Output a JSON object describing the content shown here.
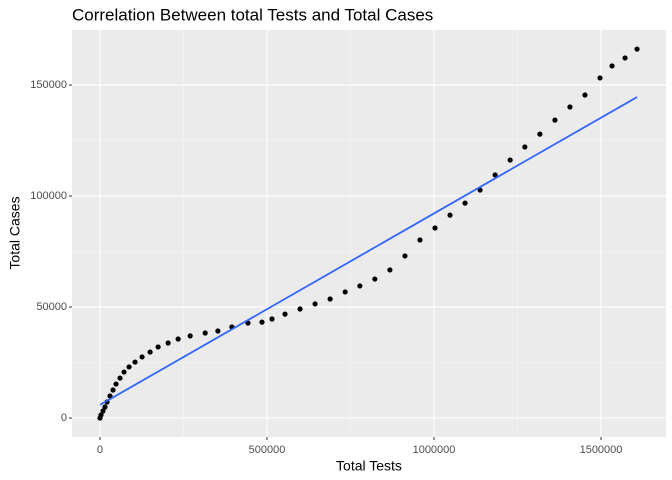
{
  "chart_data": {
    "type": "scatter",
    "title": "Correlation Between total Tests and Total Cases",
    "x_label": "Total Tests",
    "y_label": "Total Cases",
    "x": [
      0,
      3000,
      9000,
      15000,
      21000,
      30000,
      39000,
      48000,
      60000,
      72000,
      87000,
      105000,
      126000,
      150000,
      174000,
      204000,
      234000,
      270000,
      315000,
      353000,
      395000,
      443000,
      485000,
      515000,
      554000,
      599000,
      644000,
      689000,
      734000,
      778000,
      823000,
      868000,
      913000,
      958000,
      1003000,
      1048000,
      1093000,
      1138000,
      1183000,
      1228000,
      1272000,
      1317000,
      1362000,
      1407000,
      1452000,
      1497000,
      1533000,
      1572000,
      1608000
    ],
    "values": [
      0,
      1350,
      3150,
      4950,
      7200,
      9900,
      12600,
      15300,
      18000,
      20700,
      23000,
      25200,
      27500,
      29700,
      32000,
      33800,
      35600,
      37000,
      38300,
      39200,
      41000,
      42800,
      43200,
      44600,
      46800,
      49100,
      51400,
      53600,
      56800,
      59500,
      62600,
      66700,
      73000,
      80200,
      85600,
      91400,
      96800,
      102700,
      109500,
      116200,
      122100,
      127900,
      134200,
      140100,
      145500,
      153200,
      158600,
      162200,
      166200
    ],
    "color": "#000000",
    "trend_line": {
      "x": [
        0,
        1608000
      ],
      "values": [
        5900,
        144600
      ],
      "color": "#3366ff"
    },
    "xlim": [
      -83800,
      1694600
    ],
    "ylim": [
      -8560,
      174800
    ],
    "xticks": [
      0,
      500000,
      1000000,
      1500000
    ],
    "yticks": [
      0,
      50000,
      100000,
      150000
    ],
    "grid": true
  }
}
